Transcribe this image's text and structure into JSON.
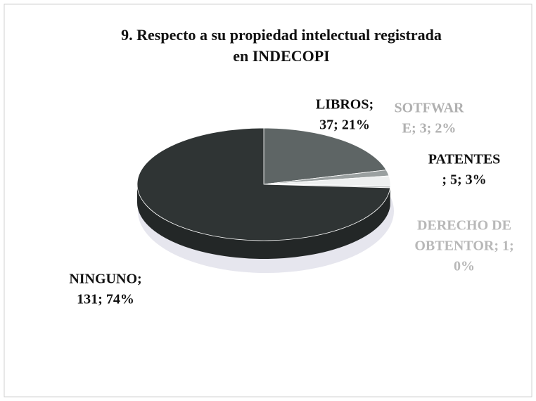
{
  "chart_data": {
    "type": "pie3d",
    "title": [
      "9. Respecto a su propiedad intelectual registrada",
      "en INDECOPI"
    ],
    "values": [
      37,
      3,
      5,
      1,
      131
    ],
    "value_labels": [
      [
        "LIBROS;",
        "37; 21%"
      ],
      [
        "SOTFWAR",
        "E; 3; 2%"
      ],
      [
        "PATENTES",
        "; 5; 3%"
      ],
      [
        "DERECHO DE",
        "OBTENTOR; 1;",
        "0%"
      ],
      [
        "NINGUNO;",
        "131; 74%"
      ]
    ],
    "colors": [
      "#5e6565",
      "#9aa0a0",
      "#eef0f0",
      "#c8cccc",
      "#2f3434"
    ],
    "label_colors": [
      "#111111",
      "#b0b0b0",
      "#111111",
      "#b8b8b8",
      "#111111"
    ]
  }
}
